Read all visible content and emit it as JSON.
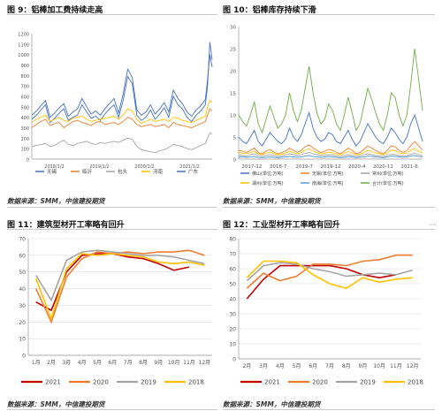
{
  "figures": [
    {
      "title": "图 9：铝棒加工费持续走高",
      "source": "数据来源：SMM，中信建投期货"
    },
    {
      "title": "图 10：铝棒库存持续下滑",
      "source": "数据来源：SMM，中信建投期货"
    },
    {
      "title": "图 11：建筑型材开工率略有回升",
      "source": "数据来源：SMM，中信建投期货"
    },
    {
      "title": "图 12：工业型材开工率略有回升",
      "source": "数据来源：SMM，中信建投期货"
    }
  ],
  "chart_data": [
    {
      "type": "line",
      "title": "图 9：铝棒加工费持续走高",
      "ylim": [
        0,
        1200
      ],
      "yticks": [
        0,
        100,
        200,
        300,
        400,
        500,
        600,
        700,
        800,
        900,
        1000,
        1100,
        1200
      ],
      "xticks": [
        "2018/1/2",
        "2019/1/2",
        "2020/1/2",
        "2021/1/2"
      ],
      "xrange": [
        2018.0,
        2021.95
      ],
      "legend_position": "bottom",
      "x": [
        2018.0,
        2018.1,
        2018.2,
        2018.3,
        2018.4,
        2018.5,
        2018.6,
        2018.7,
        2018.8,
        2018.9,
        2019.0,
        2019.1,
        2019.2,
        2019.3,
        2019.4,
        2019.5,
        2019.6,
        2019.7,
        2019.8,
        2019.9,
        2020.0,
        2020.1,
        2020.2,
        2020.3,
        2020.4,
        2020.5,
        2020.6,
        2020.7,
        2020.8,
        2020.9,
        2021.0,
        2021.1,
        2021.2,
        2021.3,
        2021.4,
        2021.5,
        2021.6,
        2021.7,
        2021.8,
        2021.85,
        2021.9,
        2021.95
      ],
      "series": [
        {
          "name": "无锡",
          "color": "#4472C4",
          "values": [
            380,
            420,
            470,
            520,
            350,
            390,
            440,
            480,
            370,
            400,
            420,
            520,
            450,
            390,
            410,
            370,
            430,
            480,
            520,
            400,
            560,
            790,
            720,
            420,
            370,
            400,
            470,
            380,
            430,
            490,
            400,
            600,
            520,
            480,
            400,
            360,
            420,
            460,
            520,
            700,
            1120,
            950
          ]
        },
        {
          "name": "临沂",
          "color": "#ED7D31",
          "values": [
            300,
            330,
            360,
            380,
            320,
            340,
            350,
            300,
            330,
            360,
            370,
            350,
            340,
            320,
            350,
            360,
            330,
            340,
            350,
            330,
            360,
            400,
            380,
            330,
            310,
            320,
            330,
            310,
            320,
            330,
            300,
            350,
            330,
            320,
            310,
            300,
            320,
            340,
            360,
            420,
            480,
            460
          ]
        },
        {
          "name": "包头",
          "color": "#A5A5A5",
          "values": [
            120,
            130,
            140,
            150,
            120,
            130,
            160,
            180,
            140,
            130,
            150,
            160,
            170,
            150,
            140,
            160,
            150,
            160,
            170,
            160,
            180,
            200,
            190,
            120,
            90,
            80,
            70,
            60,
            80,
            90,
            110,
            140,
            130,
            120,
            100,
            90,
            110,
            130,
            150,
            200,
            250,
            240
          ]
        },
        {
          "name": "河南",
          "color": "#FFC000",
          "values": [
            350,
            380,
            400,
            420,
            360,
            380,
            400,
            370,
            360,
            390,
            400,
            410,
            380,
            360,
            370,
            380,
            390,
            400,
            410,
            380,
            420,
            480,
            460,
            380,
            340,
            360,
            380,
            360,
            370,
            380,
            360,
            400,
            390,
            370,
            360,
            350,
            370,
            390,
            410,
            500,
            560,
            540
          ]
        },
        {
          "name": "广东",
          "color": "#4472C4",
          "values": [
            420,
            460,
            510,
            560,
            400,
            440,
            490,
            530,
            410,
            450,
            480,
            580,
            500,
            430,
            460,
            420,
            480,
            530,
            580,
            440,
            620,
            860,
            780,
            470,
            420,
            450,
            520,
            430,
            480,
            540,
            450,
            660,
            580,
            530,
            450,
            410,
            470,
            510,
            570,
            760,
            1000,
            880
          ]
        }
      ]
    },
    {
      "type": "line",
      "title": "图 10：铝棒库存持续下滑",
      "ylim": [
        0,
        30
      ],
      "yticks": [
        0,
        5,
        10,
        15,
        20,
        25,
        30
      ],
      "xticks": [
        "2017-12",
        "2018-7",
        "2019-7",
        "2019-12",
        "2020-4",
        "2020-11",
        "2021-6"
      ],
      "legend_position": "bottom",
      "x": [
        0,
        1,
        2,
        3,
        4,
        5,
        6,
        7,
        8,
        9,
        10,
        11,
        12,
        13,
        14,
        15,
        16,
        17,
        18,
        19,
        20,
        21,
        22,
        23,
        24,
        25,
        26,
        27,
        28,
        29,
        30,
        31,
        32,
        33,
        34,
        35,
        36,
        37,
        38,
        39,
        40,
        41,
        42,
        43,
        44,
        45,
        46,
        47
      ],
      "series": [
        {
          "name": "佛山(单位:万吨)",
          "color": "#4472C4",
          "values": [
            5,
            4,
            3.5,
            5,
            6.5,
            4,
            3,
            4.5,
            6,
            5,
            4,
            3.5,
            4.5,
            7,
            5,
            4,
            5.5,
            8,
            10.5,
            7,
            5,
            4,
            4.5,
            6,
            5.5,
            4,
            3.5,
            5,
            6.5,
            4.5,
            3,
            4,
            6,
            8,
            6.5,
            5,
            4,
            3.5,
            5,
            7,
            6,
            4.5,
            3.5,
            5,
            8,
            10,
            7,
            4
          ]
        },
        {
          "name": "无锡(单位:万吨)",
          "color": "#ED7D31",
          "values": [
            2,
            1.8,
            1.5,
            2,
            2.5,
            1.5,
            1.2,
            1.8,
            2.2,
            1.6,
            1.2,
            1.5,
            1.8,
            2.5,
            2,
            1.5,
            2,
            2.8,
            3.2,
            2.5,
            2,
            1.5,
            1.8,
            2.2,
            2,
            1.5,
            1.2,
            1.8,
            2.5,
            2,
            1.2,
            1.5,
            2.2,
            3,
            2.5,
            2,
            1.5,
            1.2,
            2,
            3,
            2.8,
            2,
            1.5,
            2,
            3,
            4,
            3,
            2
          ]
        },
        {
          "name": "常州(单位:万吨)",
          "color": "#A5A5A5",
          "values": [
            1,
            0.8,
            0.7,
            1,
            1.2,
            0.8,
            0.6,
            0.8,
            1,
            0.8,
            0.6,
            0.7,
            0.9,
            1.2,
            1,
            0.8,
            1,
            1.3,
            1.5,
            1.2,
            1,
            0.8,
            0.9,
            1,
            0.9,
            0.7,
            0.6,
            0.8,
            1,
            0.8,
            0.6,
            0.7,
            1,
            1.2,
            1,
            0.8,
            0.7,
            0.6,
            0.8,
            1.1,
            1,
            0.8,
            0.7,
            0.8,
            1.1,
            1.3,
            1,
            0.8
          ]
        },
        {
          "name": "湖州(单位:万吨)",
          "color": "#FFC000",
          "values": [
            1.5,
            1.3,
            1.2,
            1.5,
            1.8,
            1.2,
            1,
            1.3,
            1.6,
            1.2,
            1,
            1.1,
            1.3,
            1.8,
            1.5,
            1.2,
            1.5,
            2,
            2.3,
            1.8,
            1.5,
            1.2,
            1.3,
            1.6,
            1.4,
            1.1,
            1,
            1.3,
            1.7,
            1.4,
            1,
            1.1,
            1.5,
            2,
            1.7,
            1.4,
            1.2,
            1,
            1.4,
            2,
            1.9,
            1.5,
            1.2,
            1.4,
            2,
            2.4,
            1.8,
            1.4
          ]
        },
        {
          "name": "南海(单位:万吨)",
          "color": "#5B9BD5",
          "values": [
            0.5,
            0.5,
            0.4,
            0.5,
            0.6,
            0.4,
            0.3,
            0.4,
            0.5,
            0.4,
            0.3,
            0.4,
            0.5,
            0.6,
            0.5,
            0.4,
            0.5,
            0.7,
            0.8,
            0.6,
            0.5,
            0.4,
            0.5,
            0.6,
            0.5,
            0.4,
            0.3,
            0.4,
            0.6,
            0.5,
            0.3,
            0.4,
            0.5,
            0.7,
            0.6,
            0.5,
            0.4,
            0.3,
            0.5,
            0.7,
            0.6,
            0.5,
            0.4,
            0.5,
            0.7,
            0.8,
            0.6,
            0.5
          ]
        },
        {
          "name": "合计(单位:万吨)",
          "color": "#70AD47",
          "values": [
            10,
            8.5,
            7.5,
            10,
            13,
            8,
            6,
            9,
            12,
            9.5,
            7,
            8,
            10,
            15,
            11,
            8.5,
            11,
            16,
            21,
            15,
            10.5,
            8,
            9,
            12.5,
            11,
            8,
            6.5,
            10,
            14,
            10.5,
            6.5,
            8,
            12,
            16,
            13.5,
            10.5,
            8,
            6.5,
            10,
            15,
            14,
            10,
            7.5,
            10,
            17,
            25,
            18,
            11
          ]
        }
      ]
    },
    {
      "type": "line",
      "title": "图 11：建筑型材开工率略有回升",
      "ylim": [
        0,
        70
      ],
      "yticks": [
        0,
        10,
        20,
        30,
        40,
        50,
        60,
        70
      ],
      "categories": [
        "1月",
        "2月",
        "3月",
        "4月",
        "5月",
        "6月",
        "7月",
        "8月",
        "9月",
        "10月",
        "11月",
        "12月"
      ],
      "legend_position": "bottom",
      "series": [
        {
          "name": "2021",
          "color": "#C00000",
          "values": [
            32,
            27,
            50,
            60,
            61,
            61,
            59,
            58,
            55,
            51,
            53,
            null
          ]
        },
        {
          "name": "2020",
          "color": "#ED7D31",
          "values": [
            40,
            20,
            47,
            58,
            62,
            61,
            62,
            61,
            62,
            62,
            63,
            60
          ]
        },
        {
          "name": "2019",
          "color": "#A5A5A5",
          "values": [
            48,
            33,
            57,
            62,
            63,
            62,
            61,
            60,
            60,
            59,
            57,
            55
          ]
        },
        {
          "name": "2018",
          "color": "#FFC000",
          "values": [
            46,
            22,
            52,
            61,
            60,
            61,
            60,
            59,
            56,
            55,
            56,
            54
          ]
        }
      ]
    },
    {
      "type": "line",
      "title": "图 12：工业型材开工率略有回升",
      "ylim": [
        0,
        80
      ],
      "yticks": [
        0,
        10,
        20,
        30,
        40,
        50,
        60,
        70,
        80
      ],
      "categories": [
        "2月",
        "3月",
        "4月",
        "5月",
        "6月",
        "7月",
        "8月",
        "9月",
        "10月",
        "11月",
        "12月"
      ],
      "legend_position": "bottom",
      "series": [
        {
          "name": "2021",
          "color": "#C00000",
          "values": [
            40,
            53,
            62,
            62,
            62,
            62,
            60,
            56,
            54,
            56,
            null
          ]
        },
        {
          "name": "2020",
          "color": "#ED7D31",
          "values": [
            47,
            57,
            52,
            55,
            63,
            63,
            62,
            65,
            66,
            69,
            69
          ]
        },
        {
          "name": "2019",
          "color": "#A5A5A5",
          "values": [
            52,
            62,
            64,
            63,
            60,
            58,
            55,
            56,
            57,
            56,
            59
          ]
        },
        {
          "name": "2018",
          "color": "#FFC000",
          "values": [
            54,
            65,
            65,
            64,
            56,
            50,
            47,
            54,
            51,
            53,
            54
          ]
        }
      ]
    }
  ]
}
